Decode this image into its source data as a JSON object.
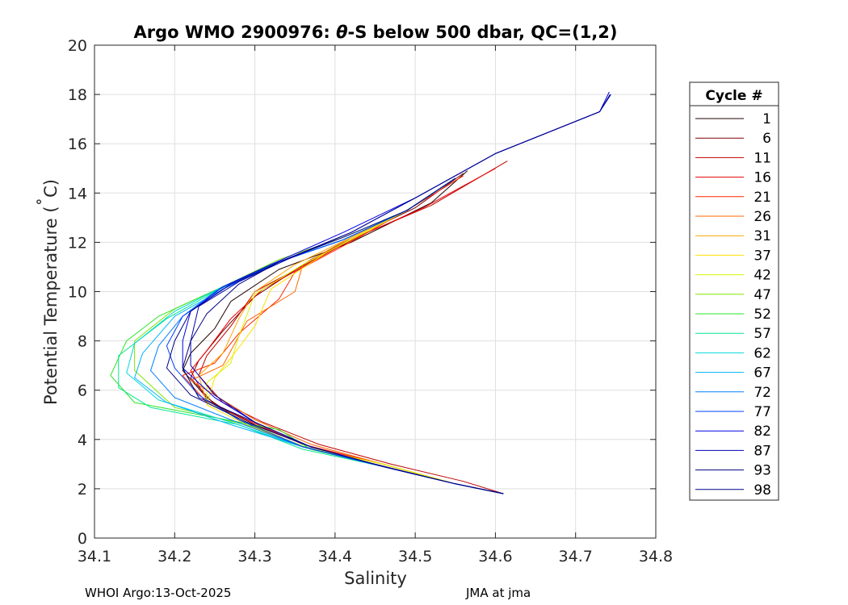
{
  "chart_data": {
    "type": "line",
    "title_prefix": "Argo WMO 2900976: ",
    "title_theta": "θ",
    "title_suffix": "-S below 500 dbar,  QC=(1,2)",
    "xlabel": "Salinity",
    "ylabel_main": "Potential Temperature (",
    "ylabel_deg": "˚",
    "ylabel_unit": "C)",
    "xlim": [
      34.1,
      34.8
    ],
    "ylim": [
      0,
      20
    ],
    "xticks": [
      34.1,
      34.2,
      34.3,
      34.4,
      34.5,
      34.6,
      34.7,
      34.8
    ],
    "xtick_labels": [
      "34.1",
      "34.2",
      "34.3",
      "34.4",
      "34.5",
      "34.6",
      "34.7",
      "34.8"
    ],
    "yticks": [
      0,
      2,
      4,
      6,
      8,
      10,
      12,
      14,
      16,
      18,
      20
    ],
    "ytick_labels": [
      "0",
      "2",
      "4",
      "6",
      "8",
      "10",
      "12",
      "14",
      "16",
      "18",
      "20"
    ],
    "grid": true,
    "legend_title": "Cycle #",
    "legend_position": "right-outside",
    "series": [
      {
        "name": "1",
        "color": "#200000",
        "x": [
          34.565,
          34.52,
          34.42,
          34.33,
          34.27,
          34.25,
          34.22,
          34.21,
          34.24,
          34.28,
          34.35,
          34.45,
          34.55,
          34.61
        ],
        "y": [
          14.9,
          13.6,
          12.0,
          10.9,
          9.6,
          8.5,
          7.5,
          6.8,
          5.7,
          4.8,
          3.8,
          3.0,
          2.2,
          1.8
        ]
      },
      {
        "name": "6",
        "color": "#800000",
        "x": [
          34.56,
          34.5,
          34.43,
          34.37,
          34.3,
          34.26,
          34.23,
          34.22,
          34.25,
          34.3,
          34.37,
          34.46,
          34.55,
          34.61
        ],
        "y": [
          14.8,
          13.4,
          12.3,
          11.3,
          9.8,
          8.4,
          7.2,
          6.5,
          5.4,
          4.6,
          3.7,
          2.9,
          2.2,
          1.8
        ]
      },
      {
        "name": "11",
        "color": "#c00000",
        "x": [
          34.615,
          34.52,
          34.44,
          34.38,
          34.3,
          34.27,
          34.24,
          34.23,
          34.26,
          34.31,
          34.38,
          34.47,
          34.56,
          34.61
        ],
        "y": [
          15.3,
          13.5,
          12.4,
          11.4,
          10.0,
          8.6,
          7.4,
          6.6,
          5.5,
          4.7,
          3.8,
          3.0,
          2.3,
          1.8
        ]
      },
      {
        "name": "16",
        "color": "#e60000",
        "x": [
          34.6,
          34.51,
          34.42,
          34.36,
          34.31,
          34.27,
          34.24,
          34.22,
          34.24,
          34.29,
          34.36,
          34.46,
          34.55,
          34.61
        ],
        "y": [
          15.0,
          13.4,
          12.1,
          11.0,
          10.1,
          8.9,
          7.6,
          6.8,
          5.6,
          4.8,
          3.8,
          3.0,
          2.2,
          1.8
        ]
      },
      {
        "name": "21",
        "color": "#ff2600",
        "x": [
          34.56,
          34.5,
          34.43,
          34.35,
          34.33,
          34.28,
          34.25,
          34.21,
          34.24,
          34.29,
          34.37,
          34.46,
          34.55,
          34.61
        ],
        "y": [
          14.7,
          13.5,
          12.2,
          10.8,
          9.7,
          8.3,
          7.1,
          6.6,
          5.5,
          4.7,
          3.7,
          3.0,
          2.2,
          1.8
        ]
      },
      {
        "name": "26",
        "color": "#ff6600",
        "x": [
          34.55,
          34.49,
          34.42,
          34.36,
          34.35,
          34.29,
          34.26,
          34.22,
          34.25,
          34.3,
          34.37,
          34.46,
          34.55,
          34.61
        ],
        "y": [
          14.6,
          13.3,
          12.2,
          11.1,
          10.0,
          8.8,
          7.0,
          6.4,
          5.8,
          4.8,
          3.8,
          3.0,
          2.2,
          1.8
        ]
      },
      {
        "name": "31",
        "color": "#ffa600",
        "x": [
          34.55,
          34.49,
          34.42,
          34.35,
          34.3,
          34.28,
          34.26,
          34.23,
          34.24,
          34.29,
          34.36,
          34.46,
          34.55,
          34.61
        ],
        "y": [
          14.6,
          13.3,
          12.2,
          11.1,
          10.0,
          8.9,
          7.5,
          6.6,
          5.5,
          4.7,
          3.7,
          3.0,
          2.2,
          1.8
        ]
      },
      {
        "name": "37",
        "color": "#ffe000",
        "x": [
          34.55,
          34.49,
          34.43,
          34.39,
          34.32,
          34.3,
          34.27,
          34.25,
          34.24,
          34.29,
          34.36,
          34.46,
          34.55,
          34.61
        ],
        "y": [
          14.6,
          13.3,
          12.3,
          11.6,
          10.1,
          8.6,
          7.3,
          6.5,
          5.4,
          4.6,
          3.7,
          3.0,
          2.2,
          1.8
        ]
      },
      {
        "name": "42",
        "color": "#d9f200",
        "x": [
          34.55,
          34.49,
          34.42,
          34.36,
          34.3,
          34.28,
          34.27,
          34.24,
          34.24,
          34.29,
          34.36,
          34.46,
          34.55,
          34.61
        ],
        "y": [
          14.6,
          13.3,
          12.1,
          11.1,
          9.9,
          8.2,
          7.1,
          6.3,
          5.5,
          4.7,
          3.7,
          3.0,
          2.2,
          1.8
        ]
      },
      {
        "name": "47",
        "color": "#80e600",
        "x": [
          34.55,
          34.49,
          34.41,
          34.33,
          34.26,
          34.2,
          34.15,
          34.15,
          34.2,
          34.3,
          34.37,
          34.46,
          34.55,
          34.61
        ],
        "y": [
          14.6,
          13.3,
          12.2,
          11.3,
          10.2,
          9.3,
          8.0,
          6.8,
          5.3,
          4.5,
          3.6,
          2.9,
          2.2,
          1.8
        ]
      },
      {
        "name": "52",
        "color": "#26e626",
        "x": [
          34.55,
          34.49,
          34.41,
          34.32,
          34.24,
          34.18,
          34.14,
          34.12,
          34.15,
          34.33,
          34.37,
          34.46,
          34.55,
          34.61
        ],
        "y": [
          14.6,
          13.3,
          12.1,
          11.1,
          9.9,
          9.0,
          8.0,
          6.6,
          5.5,
          4.4,
          3.6,
          2.9,
          2.2,
          1.8
        ]
      },
      {
        "name": "57",
        "color": "#00e68c",
        "x": [
          34.55,
          34.49,
          34.41,
          34.32,
          34.25,
          34.19,
          34.13,
          34.13,
          34.17,
          34.28,
          34.36,
          34.46,
          34.55,
          34.61
        ],
        "y": [
          14.6,
          13.3,
          12.1,
          11.1,
          10.0,
          8.9,
          7.4,
          6.1,
          5.3,
          4.6,
          3.6,
          2.9,
          2.2,
          1.8
        ]
      },
      {
        "name": "62",
        "color": "#00d9d9",
        "x": [
          34.55,
          34.49,
          34.41,
          34.33,
          34.26,
          34.2,
          34.15,
          34.14,
          34.18,
          34.27,
          34.36,
          34.46,
          34.55,
          34.61
        ],
        "y": [
          14.6,
          13.3,
          12.1,
          11.2,
          10.2,
          9.2,
          7.9,
          6.7,
          5.6,
          4.7,
          3.7,
          2.9,
          2.2,
          1.8
        ]
      },
      {
        "name": "67",
        "color": "#00b3ff",
        "x": [
          34.55,
          34.49,
          34.41,
          34.33,
          34.26,
          34.2,
          34.16,
          34.15,
          34.19,
          34.27,
          34.36,
          34.46,
          34.55,
          34.61
        ],
        "y": [
          14.6,
          13.3,
          12.1,
          11.2,
          10.1,
          9.0,
          7.5,
          6.5,
          5.5,
          4.6,
          3.7,
          2.9,
          2.2,
          1.8
        ]
      },
      {
        "name": "72",
        "color": "#0080ff",
        "x": [
          34.55,
          34.49,
          34.41,
          34.32,
          34.25,
          34.21,
          34.18,
          34.17,
          34.2,
          34.27,
          34.36,
          34.46,
          34.55,
          34.61
        ],
        "y": [
          14.6,
          13.3,
          12.1,
          11.1,
          10.0,
          9.0,
          7.8,
          6.8,
          5.7,
          4.8,
          3.7,
          2.9,
          2.2,
          1.8
        ]
      },
      {
        "name": "77",
        "color": "#0040ff",
        "x": [
          34.55,
          34.49,
          34.41,
          34.33,
          34.26,
          34.21,
          34.19,
          34.2,
          34.23,
          34.28,
          34.36,
          34.46,
          34.55,
          34.61
        ],
        "y": [
          14.6,
          13.3,
          12.1,
          11.2,
          10.1,
          9.0,
          7.8,
          6.9,
          5.8,
          4.8,
          3.7,
          2.9,
          2.2,
          1.8
        ]
      },
      {
        "name": "82",
        "color": "#0000e6",
        "x": [
          34.742,
          34.73,
          34.6,
          34.5,
          34.41,
          34.32,
          34.26,
          34.22,
          34.21,
          34.21,
          34.25,
          34.3,
          34.37,
          34.46,
          34.55,
          34.61
        ],
        "y": [
          18.1,
          17.3,
          15.6,
          13.8,
          12.4,
          11.1,
          10.2,
          9.2,
          8.0,
          6.9,
          5.7,
          4.7,
          3.7,
          2.9,
          2.2,
          1.8
        ]
      },
      {
        "name": "87",
        "color": "#0000b3",
        "x": [
          34.744,
          34.73,
          34.6,
          34.5,
          34.42,
          34.34,
          34.28,
          34.23,
          34.22,
          34.22,
          34.25,
          34.3,
          34.37,
          34.46,
          34.55,
          34.61
        ],
        "y": [
          18.0,
          17.3,
          15.6,
          13.8,
          12.4,
          11.3,
          10.4,
          9.4,
          8.0,
          7.0,
          5.8,
          4.7,
          3.7,
          2.9,
          2.2,
          1.8
        ]
      },
      {
        "name": "93",
        "color": "#000080",
        "x": [
          34.55,
          34.49,
          34.41,
          34.33,
          34.28,
          34.24,
          34.22,
          34.21,
          34.23,
          34.3,
          34.37,
          34.46,
          34.55,
          34.61
        ],
        "y": [
          14.6,
          13.3,
          12.2,
          11.2,
          10.3,
          9.1,
          8.0,
          6.9,
          5.7,
          4.7,
          3.7,
          2.9,
          2.2,
          1.8
        ]
      },
      {
        "name": "98",
        "color": "#00008c",
        "x": [
          34.743,
          34.73,
          34.6,
          34.5,
          34.42,
          34.33,
          34.27,
          34.22,
          34.2,
          34.19,
          34.22,
          34.29,
          34.37,
          34.46,
          34.55,
          34.61
        ],
        "y": [
          18.0,
          17.3,
          15.6,
          13.8,
          12.4,
          11.2,
          10.3,
          9.2,
          8.0,
          6.9,
          5.8,
          4.7,
          3.7,
          2.9,
          2.2,
          1.8
        ]
      }
    ]
  },
  "footer": {
    "left": "WHOI Argo:13-Oct-2025",
    "right": "JMA at jma"
  }
}
